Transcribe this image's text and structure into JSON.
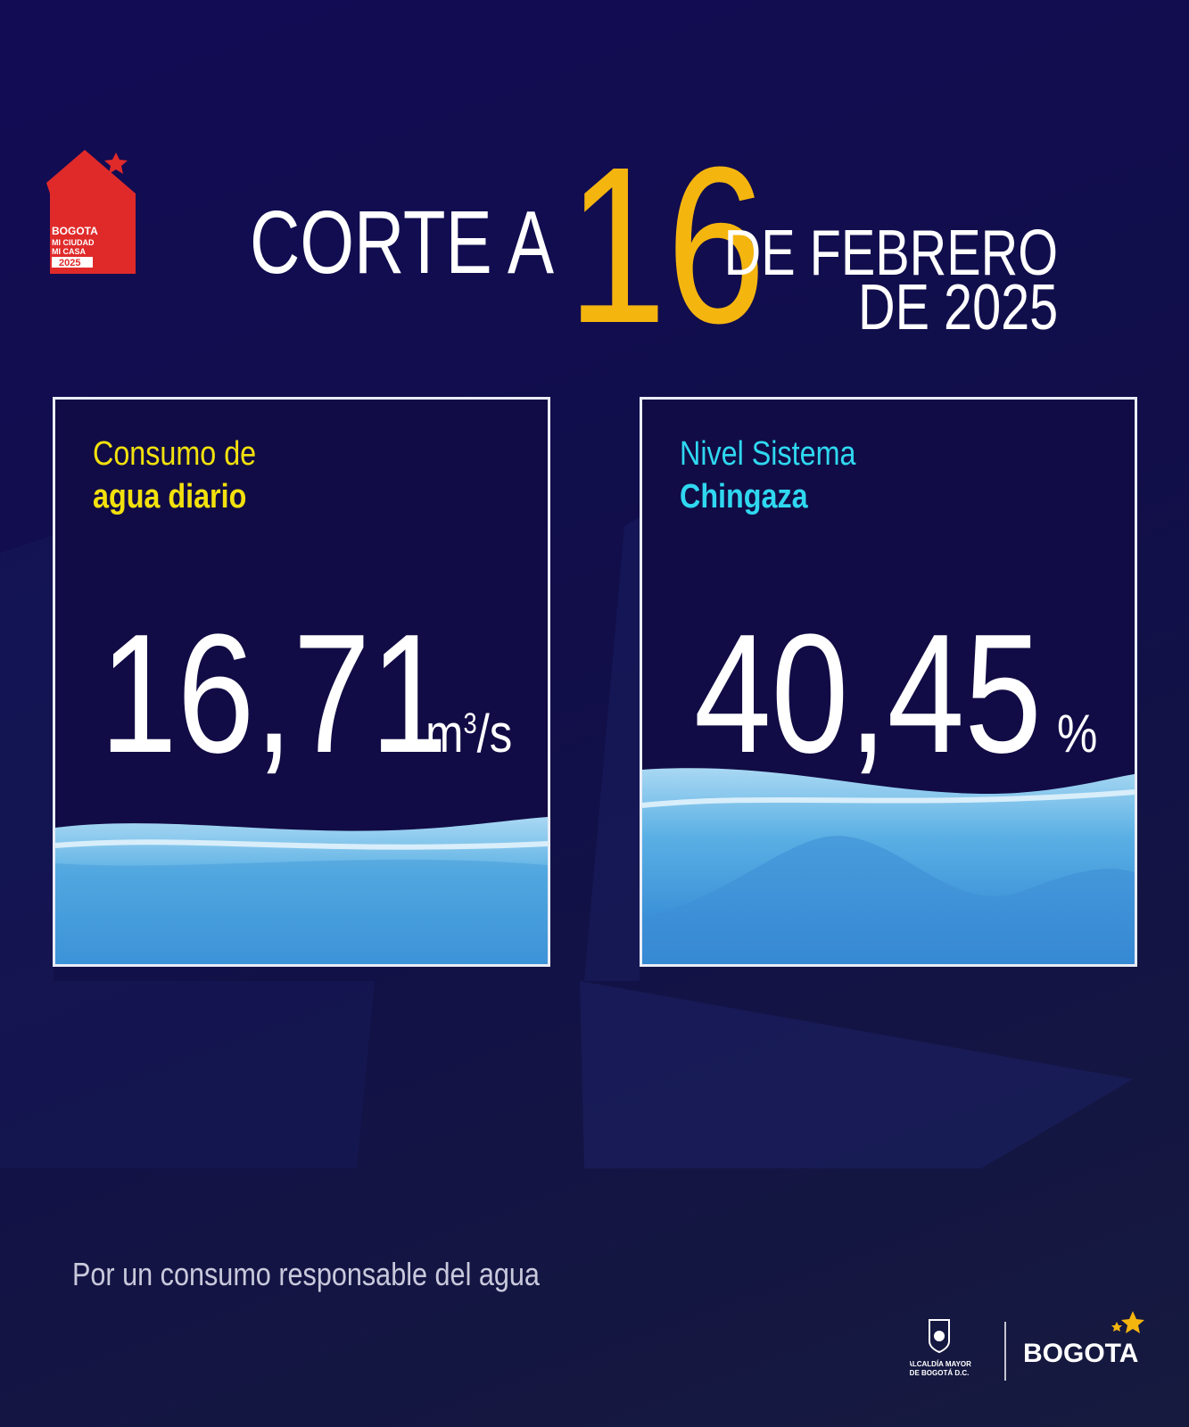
{
  "logo": {
    "lines": [
      "BOGOTA",
      "MI CIUDAD",
      "MI CASA",
      "2025"
    ]
  },
  "header": {
    "prefix": "CORTE A",
    "day": "16",
    "month": "DE FEBRERO",
    "year": "DE 2025"
  },
  "cards": [
    {
      "title_line1": "Consumo de",
      "title_line2": "agua diario",
      "value": "16,71",
      "unit": "m",
      "unit_sup": "3",
      "unit_tail": "/s"
    },
    {
      "title_line1": "Nivel Sistema",
      "title_line2": "Chingaza",
      "value": "40,45",
      "unit": "%"
    }
  ],
  "footer": {
    "slogan": "Por un consumo responsable del agua",
    "alcaldia_line1": "ALCALDÍA MAYOR",
    "alcaldia_line2": "DE BOGOTÁ D.C.",
    "brand": "BOGOTA"
  }
}
